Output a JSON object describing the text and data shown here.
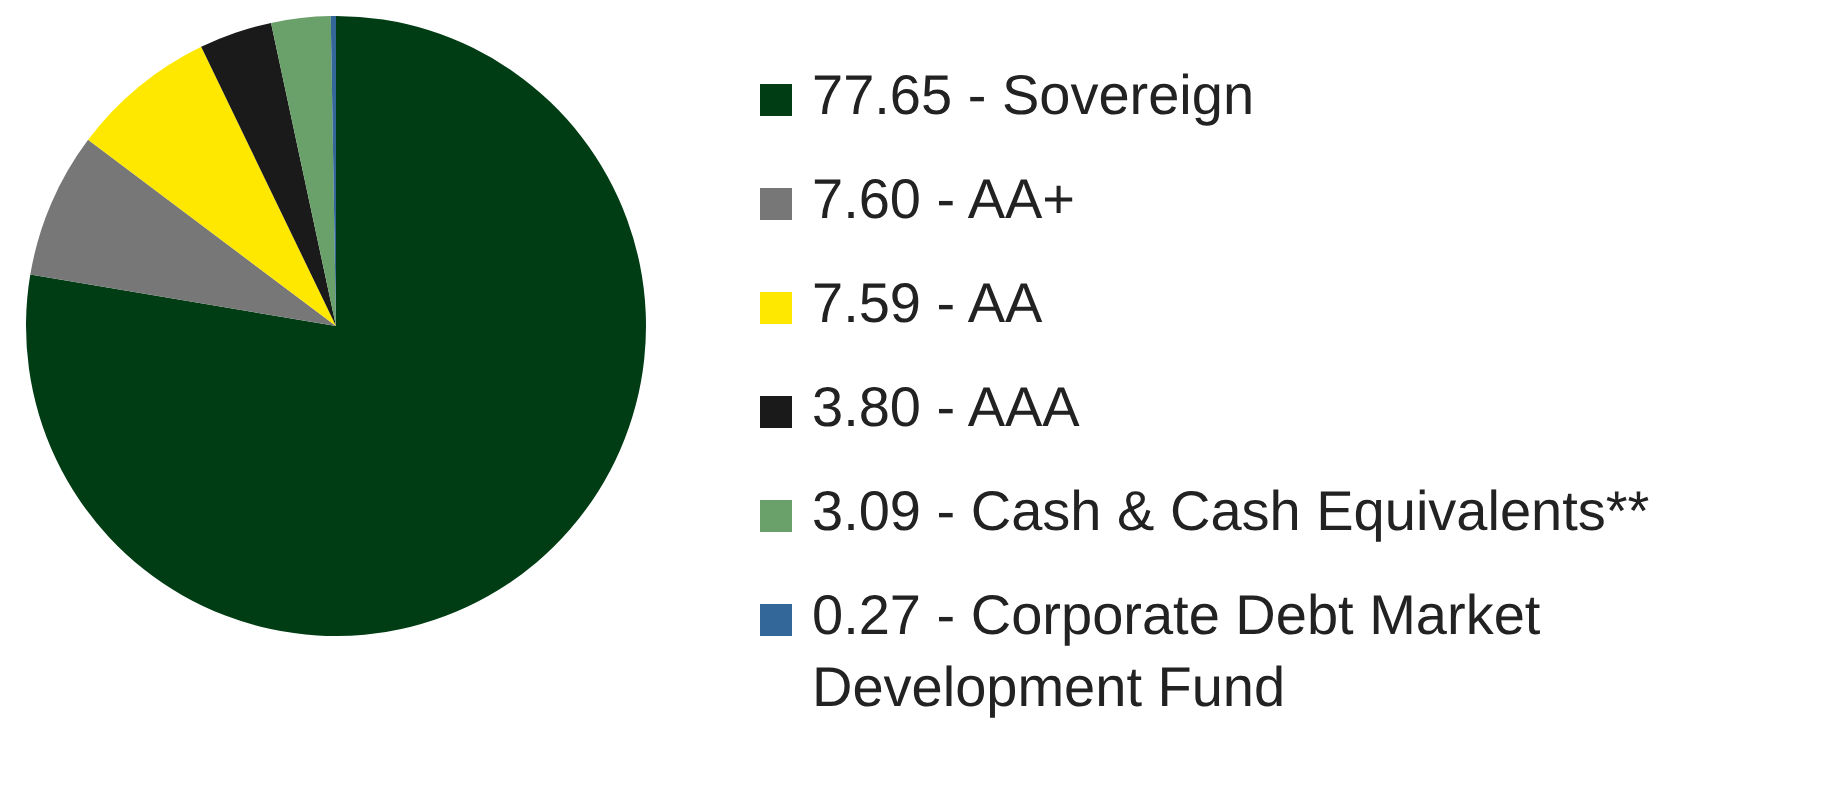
{
  "chart_data": {
    "type": "pie",
    "categories": [
      "Sovereign",
      "AA+",
      "AA",
      "AAA",
      "Cash & Cash Equivalents**",
      "Corporate Debt Market Development Fund"
    ],
    "values": [
      77.65,
      7.6,
      7.59,
      3.8,
      3.09,
      0.27
    ],
    "value_labels": [
      "77.65",
      "7.60",
      "7.59",
      "3.80",
      "3.09",
      "0.27"
    ],
    "colors": [
      "#003d14",
      "#777777",
      "#ffe800",
      "#1a1a1a",
      "#6aa06a",
      "#336699"
    ],
    "legend": "right"
  }
}
